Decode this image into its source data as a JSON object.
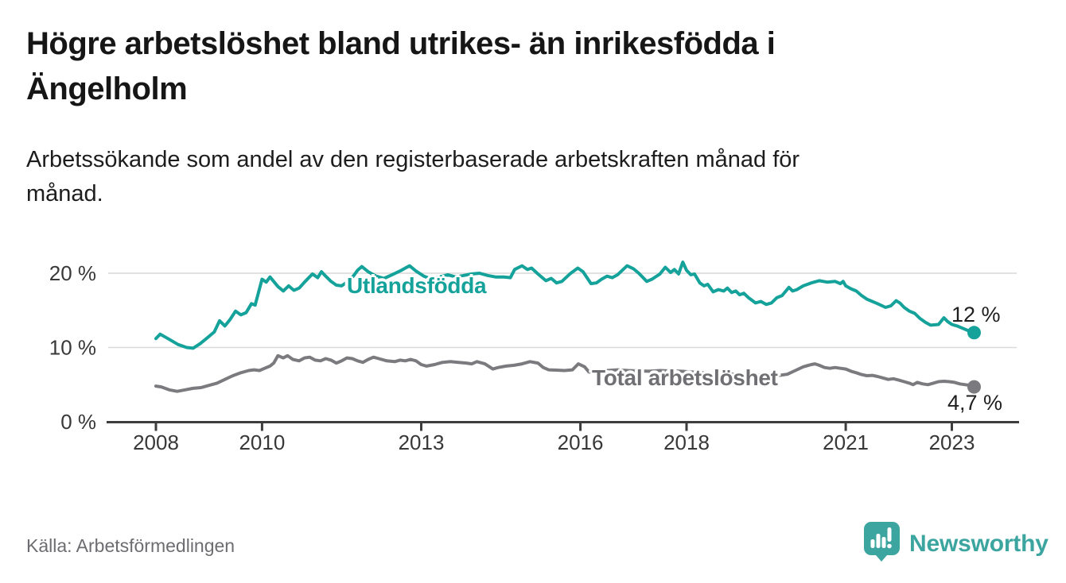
{
  "header": {
    "title_line1": "Högre arbetslöshet bland utrikes- än inrikesfödda i",
    "title_line2": "Ängelholm",
    "subtitle_line1": "Arbetssökande som andel av den registerbaserade arbetskraften månad för",
    "subtitle_line2": "månad."
  },
  "footer": {
    "source": "Källa: Arbetsförmedlingen",
    "brand": "Newsworthy"
  },
  "colors": {
    "teal": "#14a29a",
    "gray_line": "#7b7b7f",
    "gray_label": "#707074",
    "logo_teal": "#3da5a0",
    "axis": "#3d3d3d",
    "grid": "#d9d9d9",
    "axis_text": "#383838"
  },
  "chart_data": {
    "type": "line",
    "title": "Högre arbetslöshet bland utrikes- än inrikesfödda i Ängelholm",
    "subtitle": "Arbetssökande som andel av den registerbaserade arbetskraften månad för månad.",
    "source": "Källa: Arbetsförmedlingen",
    "grid": true,
    "legend_position": "inline-labels",
    "x_axis": {
      "range": [
        2007.9,
        2023.6
      ],
      "ticks": [
        {
          "value": 2008,
          "label": "2008"
        },
        {
          "value": 2010,
          "label": "2010"
        },
        {
          "value": 2013,
          "label": "2013"
        },
        {
          "value": 2016,
          "label": "2016"
        },
        {
          "value": 2018,
          "label": "2018"
        },
        {
          "value": 2021,
          "label": "2021"
        },
        {
          "value": 2023,
          "label": "2023"
        }
      ]
    },
    "y_axis": {
      "unit": "%",
      "range": [
        0,
        23
      ],
      "ticks": [
        {
          "value": 0,
          "label": "0 %"
        },
        {
          "value": 10,
          "label": "10 %"
        },
        {
          "value": 20,
          "label": "20 %"
        }
      ]
    },
    "series": [
      {
        "name": "Utlandsfödda",
        "color": "#14a29a",
        "label_color": "#14a29a",
        "end_label": "12 %",
        "last_value": 12,
        "points": [
          [
            2008.0,
            11.2
          ],
          [
            2008.08,
            11.8
          ],
          [
            2008.25,
            11.1
          ],
          [
            2008.42,
            10.4
          ],
          [
            2008.58,
            10.0
          ],
          [
            2008.7,
            9.9
          ],
          [
            2008.83,
            10.5
          ],
          [
            2008.95,
            11.2
          ],
          [
            2009.1,
            12.1
          ],
          [
            2009.2,
            13.6
          ],
          [
            2009.3,
            12.9
          ],
          [
            2009.4,
            13.8
          ],
          [
            2009.5,
            14.9
          ],
          [
            2009.6,
            14.4
          ],
          [
            2009.7,
            14.7
          ],
          [
            2009.8,
            15.9
          ],
          [
            2009.87,
            15.7
          ],
          [
            2010.0,
            19.2
          ],
          [
            2010.08,
            18.8
          ],
          [
            2010.15,
            19.5
          ],
          [
            2010.3,
            18.2
          ],
          [
            2010.4,
            17.6
          ],
          [
            2010.5,
            18.3
          ],
          [
            2010.6,
            17.7
          ],
          [
            2010.7,
            18.0
          ],
          [
            2010.8,
            18.8
          ],
          [
            2010.95,
            19.9
          ],
          [
            2011.05,
            19.4
          ],
          [
            2011.12,
            20.2
          ],
          [
            2011.2,
            19.6
          ],
          [
            2011.3,
            18.9
          ],
          [
            2011.4,
            18.4
          ],
          [
            2011.5,
            18.3
          ],
          [
            2011.6,
            18.8
          ],
          [
            2011.72,
            19.6
          ],
          [
            2011.8,
            20.4
          ],
          [
            2011.88,
            20.9
          ],
          [
            2012.0,
            20.2
          ],
          [
            2012.15,
            19.6
          ],
          [
            2012.3,
            19.3
          ],
          [
            2012.45,
            19.8
          ],
          [
            2012.6,
            20.3
          ],
          [
            2012.78,
            21.0
          ],
          [
            2012.9,
            20.3
          ],
          [
            2013.05,
            19.6
          ],
          [
            2013.2,
            19.2
          ],
          [
            2013.35,
            19.5
          ],
          [
            2013.5,
            19.8
          ],
          [
            2013.65,
            19.5
          ],
          [
            2013.8,
            19.7
          ],
          [
            2013.95,
            19.9
          ],
          [
            2014.1,
            20.0
          ],
          [
            2014.25,
            19.7
          ],
          [
            2014.4,
            19.5
          ],
          [
            2014.55,
            19.5
          ],
          [
            2014.68,
            19.4
          ],
          [
            2014.76,
            20.5
          ],
          [
            2014.9,
            21.0
          ],
          [
            2015.0,
            20.5
          ],
          [
            2015.08,
            20.7
          ],
          [
            2015.2,
            19.9
          ],
          [
            2015.35,
            19.0
          ],
          [
            2015.45,
            19.3
          ],
          [
            2015.55,
            18.7
          ],
          [
            2015.65,
            18.9
          ],
          [
            2015.8,
            19.9
          ],
          [
            2015.95,
            20.7
          ],
          [
            2016.05,
            20.2
          ],
          [
            2016.2,
            18.6
          ],
          [
            2016.3,
            18.7
          ],
          [
            2016.4,
            19.2
          ],
          [
            2016.5,
            19.6
          ],
          [
            2016.6,
            19.4
          ],
          [
            2016.7,
            19.8
          ],
          [
            2016.88,
            21.0
          ],
          [
            2017.0,
            20.6
          ],
          [
            2017.1,
            20.0
          ],
          [
            2017.25,
            18.9
          ],
          [
            2017.35,
            19.2
          ],
          [
            2017.5,
            19.9
          ],
          [
            2017.6,
            20.8
          ],
          [
            2017.7,
            20.1
          ],
          [
            2017.77,
            20.5
          ],
          [
            2017.85,
            19.9
          ],
          [
            2017.93,
            21.5
          ],
          [
            2018.0,
            20.4
          ],
          [
            2018.08,
            19.8
          ],
          [
            2018.15,
            19.9
          ],
          [
            2018.25,
            18.7
          ],
          [
            2018.33,
            18.3
          ],
          [
            2018.4,
            18.5
          ],
          [
            2018.5,
            17.5
          ],
          [
            2018.6,
            17.8
          ],
          [
            2018.7,
            17.6
          ],
          [
            2018.77,
            18.0
          ],
          [
            2018.85,
            17.4
          ],
          [
            2018.93,
            17.6
          ],
          [
            2019.0,
            17.1
          ],
          [
            2019.08,
            17.3
          ],
          [
            2019.17,
            16.7
          ],
          [
            2019.3,
            16.0
          ],
          [
            2019.4,
            16.2
          ],
          [
            2019.5,
            15.8
          ],
          [
            2019.6,
            16.0
          ],
          [
            2019.7,
            16.7
          ],
          [
            2019.8,
            17.0
          ],
          [
            2019.93,
            18.1
          ],
          [
            2020.0,
            17.6
          ],
          [
            2020.08,
            17.8
          ],
          [
            2020.2,
            18.3
          ],
          [
            2020.35,
            18.7
          ],
          [
            2020.5,
            19.0
          ],
          [
            2020.65,
            18.8
          ],
          [
            2020.8,
            18.9
          ],
          [
            2020.9,
            18.6
          ],
          [
            2020.95,
            18.9
          ],
          [
            2021.0,
            18.3
          ],
          [
            2021.1,
            17.9
          ],
          [
            2021.2,
            17.6
          ],
          [
            2021.3,
            17.0
          ],
          [
            2021.4,
            16.5
          ],
          [
            2021.5,
            16.2
          ],
          [
            2021.6,
            15.9
          ],
          [
            2021.75,
            15.4
          ],
          [
            2021.85,
            15.6
          ],
          [
            2021.95,
            16.3
          ],
          [
            2022.02,
            16.0
          ],
          [
            2022.1,
            15.4
          ],
          [
            2022.2,
            14.9
          ],
          [
            2022.3,
            14.6
          ],
          [
            2022.4,
            13.9
          ],
          [
            2022.5,
            13.4
          ],
          [
            2022.6,
            13.0
          ],
          [
            2022.75,
            13.1
          ],
          [
            2022.85,
            14.0
          ],
          [
            2022.92,
            13.5
          ],
          [
            2023.0,
            13.1
          ],
          [
            2023.1,
            12.9
          ],
          [
            2023.2,
            12.6
          ],
          [
            2023.3,
            12.3
          ],
          [
            2023.42,
            12.0
          ]
        ]
      },
      {
        "name": "Total arbetslöshet",
        "color": "#7b7b7f",
        "label_color": "#707074",
        "end_label": "4,7 %",
        "last_value": 4.7,
        "points": [
          [
            2008.0,
            4.8
          ],
          [
            2008.1,
            4.7
          ],
          [
            2008.25,
            4.3
          ],
          [
            2008.4,
            4.1
          ],
          [
            2008.55,
            4.3
          ],
          [
            2008.7,
            4.5
          ],
          [
            2008.85,
            4.6
          ],
          [
            2009.0,
            4.9
          ],
          [
            2009.15,
            5.2
          ],
          [
            2009.3,
            5.7
          ],
          [
            2009.45,
            6.2
          ],
          [
            2009.6,
            6.6
          ],
          [
            2009.75,
            6.9
          ],
          [
            2009.85,
            7.0
          ],
          [
            2009.95,
            6.9
          ],
          [
            2010.05,
            7.2
          ],
          [
            2010.15,
            7.5
          ],
          [
            2010.22,
            7.9
          ],
          [
            2010.3,
            8.9
          ],
          [
            2010.4,
            8.6
          ],
          [
            2010.48,
            8.9
          ],
          [
            2010.58,
            8.4
          ],
          [
            2010.7,
            8.2
          ],
          [
            2010.8,
            8.6
          ],
          [
            2010.9,
            8.7
          ],
          [
            2011.0,
            8.3
          ],
          [
            2011.1,
            8.2
          ],
          [
            2011.2,
            8.5
          ],
          [
            2011.3,
            8.3
          ],
          [
            2011.4,
            7.9
          ],
          [
            2011.5,
            8.2
          ],
          [
            2011.6,
            8.6
          ],
          [
            2011.7,
            8.5
          ],
          [
            2011.8,
            8.2
          ],
          [
            2011.9,
            8.0
          ],
          [
            2012.0,
            8.4
          ],
          [
            2012.1,
            8.7
          ],
          [
            2012.2,
            8.5
          ],
          [
            2012.35,
            8.2
          ],
          [
            2012.5,
            8.1
          ],
          [
            2012.6,
            8.3
          ],
          [
            2012.7,
            8.2
          ],
          [
            2012.8,
            8.4
          ],
          [
            2012.9,
            8.2
          ],
          [
            2013.0,
            7.7
          ],
          [
            2013.1,
            7.5
          ],
          [
            2013.25,
            7.7
          ],
          [
            2013.4,
            8.0
          ],
          [
            2013.55,
            8.1
          ],
          [
            2013.7,
            8.0
          ],
          [
            2013.85,
            7.9
          ],
          [
            2013.95,
            7.8
          ],
          [
            2014.05,
            8.1
          ],
          [
            2014.2,
            7.8
          ],
          [
            2014.35,
            7.1
          ],
          [
            2014.45,
            7.3
          ],
          [
            2014.6,
            7.5
          ],
          [
            2014.75,
            7.6
          ],
          [
            2014.9,
            7.8
          ],
          [
            2015.05,
            8.1
          ],
          [
            2015.2,
            7.9
          ],
          [
            2015.3,
            7.3
          ],
          [
            2015.4,
            7.0
          ],
          [
            2015.55,
            6.95
          ],
          [
            2015.7,
            6.9
          ],
          [
            2015.85,
            7.0
          ],
          [
            2015.96,
            7.8
          ],
          [
            2016.08,
            7.4
          ],
          [
            2016.16,
            6.7
          ],
          [
            2016.3,
            6.8
          ],
          [
            2016.5,
            6.9
          ],
          [
            2016.7,
            7.0
          ],
          [
            2016.9,
            6.9
          ],
          [
            2017.1,
            6.85
          ],
          [
            2017.3,
            6.8
          ],
          [
            2017.5,
            6.9
          ],
          [
            2017.7,
            6.85
          ],
          [
            2017.9,
            6.8
          ],
          [
            2018.1,
            6.7
          ],
          [
            2018.3,
            6.6
          ],
          [
            2018.5,
            6.5
          ],
          [
            2018.7,
            6.45
          ],
          [
            2018.9,
            6.4
          ],
          [
            2019.1,
            6.35
          ],
          [
            2019.3,
            6.3
          ],
          [
            2019.5,
            6.25
          ],
          [
            2019.7,
            6.2
          ],
          [
            2019.9,
            6.4
          ],
          [
            2020.05,
            6.9
          ],
          [
            2020.2,
            7.4
          ],
          [
            2020.35,
            7.7
          ],
          [
            2020.42,
            7.8
          ],
          [
            2020.5,
            7.6
          ],
          [
            2020.6,
            7.3
          ],
          [
            2020.7,
            7.2
          ],
          [
            2020.8,
            7.3
          ],
          [
            2020.9,
            7.2
          ],
          [
            2021.0,
            7.1
          ],
          [
            2021.1,
            6.8
          ],
          [
            2021.2,
            6.6
          ],
          [
            2021.3,
            6.35
          ],
          [
            2021.4,
            6.2
          ],
          [
            2021.5,
            6.25
          ],
          [
            2021.6,
            6.1
          ],
          [
            2021.7,
            5.9
          ],
          [
            2021.8,
            5.7
          ],
          [
            2021.9,
            5.8
          ],
          [
            2022.0,
            5.6
          ],
          [
            2022.1,
            5.4
          ],
          [
            2022.2,
            5.2
          ],
          [
            2022.27,
            5.0
          ],
          [
            2022.35,
            5.3
          ],
          [
            2022.45,
            5.1
          ],
          [
            2022.55,
            5.0
          ],
          [
            2022.65,
            5.2
          ],
          [
            2022.75,
            5.4
          ],
          [
            2022.85,
            5.45
          ],
          [
            2022.95,
            5.4
          ],
          [
            2023.05,
            5.3
          ],
          [
            2023.15,
            5.1
          ],
          [
            2023.25,
            5.0
          ],
          [
            2023.35,
            4.9
          ],
          [
            2023.42,
            4.7
          ]
        ]
      }
    ]
  }
}
